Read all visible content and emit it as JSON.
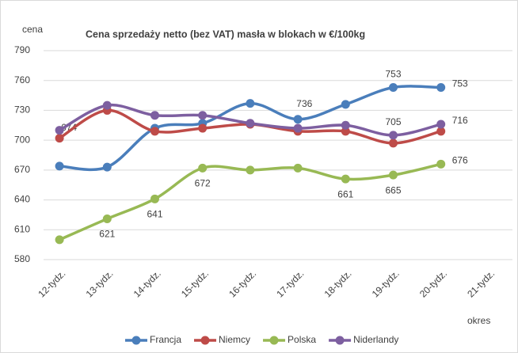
{
  "chart_data": {
    "type": "line",
    "title": "Cena sprzedaży netto (bez VAT) masła w blokach w €/100kg",
    "y_label": "cena",
    "x_label": "okres",
    "categories": [
      "12-tydz.",
      "13-tydz.",
      "14-tydz.",
      "15-tydz.",
      "16-tydz.",
      "17-tydz.",
      "18-tydz.",
      "19-tydz.",
      "20-tydz.",
      "21-tydz."
    ],
    "series": [
      {
        "name": "Francja",
        "color": "#4a7ebb",
        "values": [
          674,
          673,
          712,
          717,
          737,
          721,
          736,
          753,
          753,
          null
        ],
        "value_labels": [
          "674",
          null,
          null,
          null,
          null,
          null,
          "736",
          "753",
          "753",
          null
        ]
      },
      {
        "name": "Niemcy",
        "color": "#be4b48",
        "values": [
          702,
          730,
          709,
          712,
          716,
          709,
          709,
          697,
          709,
          null
        ],
        "value_labels": [
          null,
          null,
          null,
          null,
          null,
          null,
          null,
          null,
          null,
          null
        ]
      },
      {
        "name": "Polska",
        "color": "#98b954",
        "values": [
          600,
          621,
          641,
          672,
          670,
          672,
          661,
          665,
          676,
          null
        ],
        "value_labels": [
          null,
          "621",
          "641",
          "672",
          null,
          null,
          "661",
          "665",
          "676",
          null
        ]
      },
      {
        "name": "Niderlandy",
        "color": "#7d5fa0",
        "values": [
          710,
          735,
          725,
          725,
          717,
          712,
          715,
          705,
          716,
          null
        ],
        "value_labels": [
          null,
          null,
          null,
          null,
          null,
          null,
          null,
          "705",
          "716",
          null
        ]
      }
    ],
    "ylim": [
      580,
      790
    ],
    "yticks": [
      580,
      610,
      640,
      670,
      700,
      730,
      760,
      790
    ],
    "grid": true,
    "legend": "bottom"
  }
}
